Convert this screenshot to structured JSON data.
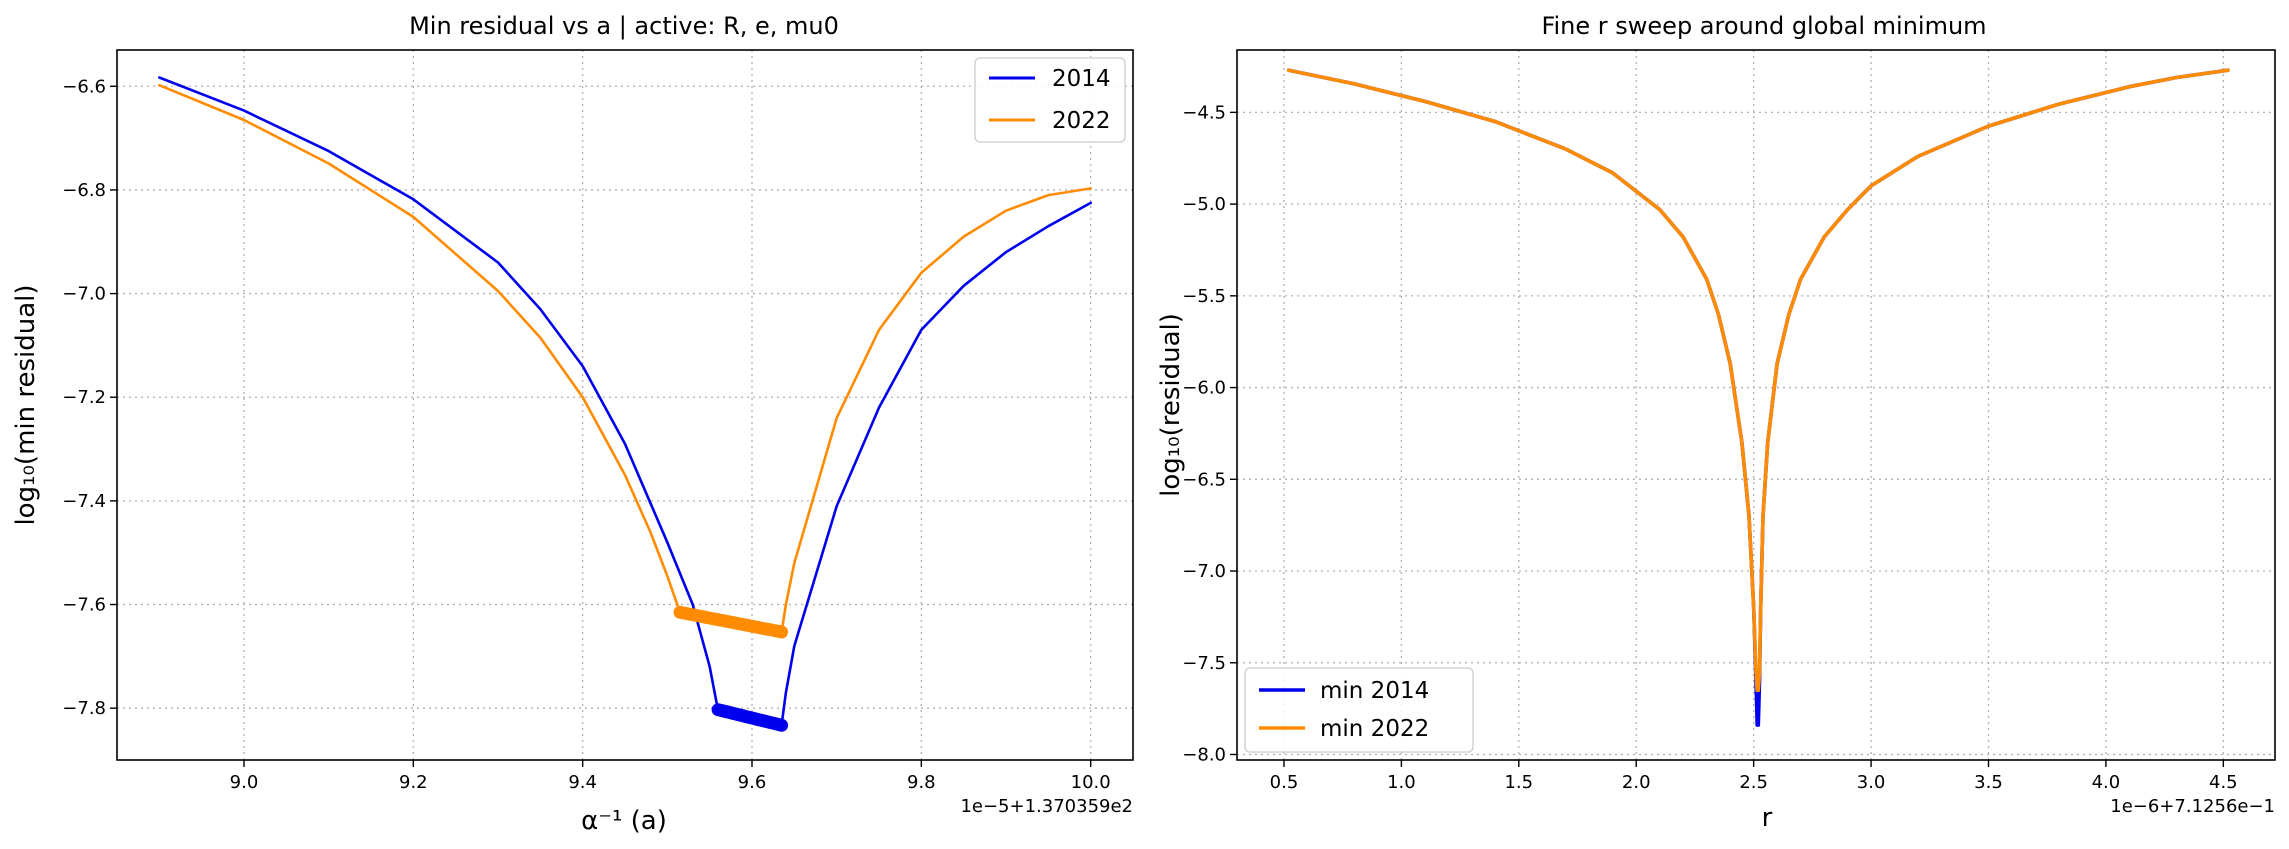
{
  "chart_data": [
    {
      "type": "line",
      "title": "Min residual vs a  |  active: R, e, mu0",
      "xlabel": "α⁻¹ (a)",
      "ylabel": "log₁₀(min residual)",
      "x_offset_label": "1e−5+1.370359e2",
      "xlim": [
        8.85,
        10.05
      ],
      "ylim": [
        -7.9,
        -6.53
      ],
      "x_ticks": [
        9.0,
        9.2,
        9.4,
        9.6,
        9.8,
        10.0
      ],
      "x_tick_labels": [
        "9.0",
        "9.2",
        "9.4",
        "9.6",
        "9.8",
        "10.0"
      ],
      "y_ticks": [
        -7.8,
        -7.6,
        -7.4,
        -7.2,
        -7.0,
        -6.8,
        -6.6
      ],
      "y_tick_labels": [
        "−7.8",
        "−7.6",
        "−7.4",
        "−7.2",
        "−7.0",
        "−6.8",
        "−6.6"
      ],
      "grid": true,
      "legend_position": "upper-right",
      "series": [
        {
          "name": "2014",
          "color": "#0000ee",
          "x": [
            8.9,
            9.0,
            9.1,
            9.2,
            9.3,
            9.35,
            9.4,
            9.45,
            9.5,
            9.53,
            9.55,
            9.56,
            9.58,
            9.6,
            9.62,
            9.635,
            9.64,
            9.65,
            9.7,
            9.75,
            9.8,
            9.85,
            9.9,
            9.95,
            10.0
          ],
          "y": [
            -6.583,
            -6.647,
            -6.725,
            -6.818,
            -6.94,
            -7.03,
            -7.14,
            -7.29,
            -7.48,
            -7.6,
            -7.72,
            -7.805,
            -7.813,
            -7.82,
            -7.827,
            -7.832,
            -7.77,
            -7.68,
            -7.41,
            -7.22,
            -7.07,
            -6.985,
            -6.92,
            -6.87,
            -6.825
          ],
          "highlight_x": [
            9.56,
            9.635
          ],
          "highlight_y": [
            -7.803,
            -7.833
          ]
        },
        {
          "name": "2022",
          "color": "#ff8c00",
          "x": [
            8.9,
            9.0,
            9.1,
            9.2,
            9.3,
            9.35,
            9.4,
            9.45,
            9.48,
            9.5,
            9.515,
            9.55,
            9.6,
            9.635,
            9.64,
            9.65,
            9.7,
            9.75,
            9.8,
            9.85,
            9.9,
            9.95,
            10.0
          ],
          "y": [
            -6.598,
            -6.665,
            -6.749,
            -6.852,
            -6.995,
            -7.085,
            -7.2,
            -7.35,
            -7.46,
            -7.545,
            -7.615,
            -7.628,
            -7.641,
            -7.653,
            -7.6,
            -7.52,
            -7.24,
            -7.07,
            -6.96,
            -6.89,
            -6.84,
            -6.81,
            -6.797
          ],
          "highlight_x": [
            9.515,
            9.635
          ],
          "highlight_y": [
            -7.615,
            -7.653
          ]
        }
      ]
    },
    {
      "type": "line",
      "title": "Fine r sweep around global minimum",
      "xlabel": "r",
      "ylabel": "log₁₀(residual)",
      "x_offset_label": "1e−6+7.1256e−1",
      "xlim": [
        0.3,
        4.72
      ],
      "ylim": [
        -8.03,
        -4.16
      ],
      "x_ticks": [
        0.5,
        1.0,
        1.5,
        2.0,
        2.5,
        3.0,
        3.5,
        4.0,
        4.5
      ],
      "x_tick_labels": [
        "0.5",
        "1.0",
        "1.5",
        "2.0",
        "2.5",
        "3.0",
        "3.5",
        "4.0",
        "4.5"
      ],
      "y_ticks": [
        -8.0,
        -7.5,
        -7.0,
        -6.5,
        -6.0,
        -5.5,
        -5.0,
        -4.5
      ],
      "y_tick_labels": [
        "−8.0",
        "−7.5",
        "−7.0",
        "−6.5",
        "−6.0",
        "−5.5",
        "−5.0",
        "−4.5"
      ],
      "grid": true,
      "legend_position": "lower-left",
      "series": [
        {
          "name": "min 2014",
          "color": "#0000ee",
          "x": [
            0.52,
            0.8,
            1.1,
            1.4,
            1.7,
            1.9,
            2.1,
            2.2,
            2.3,
            2.35,
            2.4,
            2.45,
            2.48,
            2.5,
            2.51,
            2.515,
            2.52,
            2.525,
            2.53,
            2.54,
            2.56,
            2.6,
            2.65,
            2.7,
            2.8,
            2.9,
            3.0,
            3.2,
            3.5,
            3.8,
            4.1,
            4.3,
            4.52
          ],
          "y": [
            -4.27,
            -4.345,
            -4.44,
            -4.55,
            -4.7,
            -4.83,
            -5.03,
            -5.18,
            -5.41,
            -5.6,
            -5.87,
            -6.3,
            -6.7,
            -7.2,
            -7.6,
            -7.84,
            -7.84,
            -7.6,
            -7.2,
            -6.7,
            -6.3,
            -5.87,
            -5.6,
            -5.41,
            -5.18,
            -5.03,
            -4.9,
            -4.74,
            -4.575,
            -4.455,
            -4.36,
            -4.31,
            -4.27
          ]
        },
        {
          "name": "min 2022",
          "color": "#ff8c00",
          "x": [
            0.52,
            0.8,
            1.1,
            1.4,
            1.7,
            1.9,
            2.1,
            2.2,
            2.3,
            2.35,
            2.4,
            2.45,
            2.48,
            2.5,
            2.51,
            2.515,
            2.52,
            2.525,
            2.53,
            2.54,
            2.56,
            2.6,
            2.65,
            2.7,
            2.8,
            2.9,
            3.0,
            3.2,
            3.5,
            3.8,
            4.1,
            4.3,
            4.52
          ],
          "y": [
            -4.27,
            -4.345,
            -4.44,
            -4.55,
            -4.7,
            -4.83,
            -5.03,
            -5.18,
            -5.41,
            -5.6,
            -5.87,
            -6.3,
            -6.7,
            -7.2,
            -7.55,
            -7.65,
            -7.65,
            -7.55,
            -7.2,
            -6.7,
            -6.3,
            -5.87,
            -5.6,
            -5.41,
            -5.18,
            -5.03,
            -4.9,
            -4.74,
            -4.575,
            -4.455,
            -4.36,
            -4.31,
            -4.27
          ]
        }
      ]
    }
  ]
}
